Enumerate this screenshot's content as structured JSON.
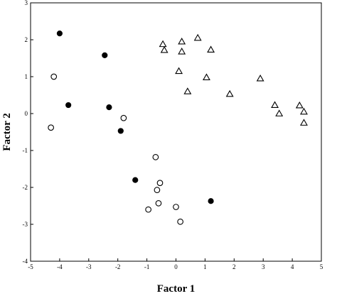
{
  "chart_data": {
    "type": "scatter",
    "xlabel": "Factor 1",
    "ylabel": "Factor 2",
    "xlim": [
      -5,
      5
    ],
    "ylim": [
      -4,
      3
    ],
    "xticks": [
      -5,
      -4,
      -3,
      -2,
      -1,
      0,
      1,
      2,
      3,
      4,
      5
    ],
    "yticks": [
      -4,
      -3,
      -2,
      -1,
      0,
      1,
      2,
      3
    ],
    "grid": false,
    "legend": "none",
    "series": [
      {
        "marker": "filled-circle",
        "points": [
          [
            -4.0,
            2.17
          ],
          [
            -2.45,
            1.58
          ],
          [
            -3.7,
            0.23
          ],
          [
            -2.3,
            0.17
          ],
          [
            -1.9,
            -0.47
          ],
          [
            -1.4,
            -1.8
          ],
          [
            1.2,
            -2.37
          ]
        ]
      },
      {
        "marker": "open-circle",
        "points": [
          [
            -4.2,
            1.0
          ],
          [
            -4.3,
            -0.38
          ],
          [
            -1.8,
            -0.12
          ],
          [
            -0.7,
            -1.18
          ],
          [
            -0.55,
            -1.88
          ],
          [
            -0.65,
            -2.07
          ],
          [
            -0.6,
            -2.43
          ],
          [
            -0.95,
            -2.6
          ],
          [
            0.0,
            -2.53
          ],
          [
            0.15,
            -2.93
          ]
        ]
      },
      {
        "marker": "open-triangle",
        "points": [
          [
            -0.45,
            1.88
          ],
          [
            -0.4,
            1.72
          ],
          [
            0.2,
            1.95
          ],
          [
            0.2,
            1.68
          ],
          [
            0.75,
            2.05
          ],
          [
            1.2,
            1.73
          ],
          [
            0.1,
            1.15
          ],
          [
            1.05,
            0.98
          ],
          [
            0.4,
            0.6
          ],
          [
            1.85,
            0.53
          ],
          [
            2.9,
            0.95
          ],
          [
            3.4,
            0.23
          ],
          [
            3.55,
            0.0
          ],
          [
            4.25,
            0.22
          ],
          [
            4.4,
            0.05
          ],
          [
            4.4,
            -0.25
          ]
        ]
      }
    ]
  }
}
